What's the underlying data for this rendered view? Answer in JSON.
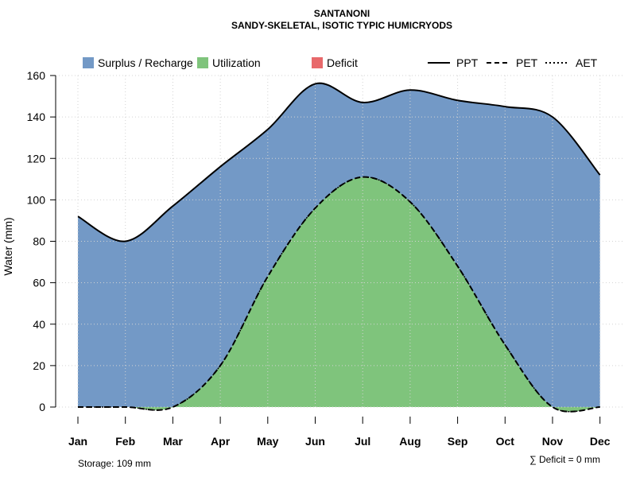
{
  "chart_data": {
    "type": "area",
    "title": "SANTANONI",
    "subtitle": "SANDY-SKELETAL, ISOTIC TYPIC HUMICRYODS",
    "xlabel": "",
    "ylabel": "Water (mm)",
    "ylim": [
      0,
      160
    ],
    "yticks": [
      0,
      20,
      40,
      60,
      80,
      100,
      120,
      140,
      160
    ],
    "categories": [
      "Jan",
      "Feb",
      "Mar",
      "Apr",
      "May",
      "Jun",
      "Jul",
      "Aug",
      "Sep",
      "Oct",
      "Nov",
      "Dec"
    ],
    "series": [
      {
        "name": "PPT",
        "style": "solid",
        "values": [
          92,
          80,
          97,
          116,
          134,
          156,
          147,
          153,
          148,
          145,
          140,
          112
        ]
      },
      {
        "name": "PET",
        "style": "dashed",
        "values": [
          0,
          0,
          0,
          20,
          63,
          96,
          111,
          99,
          68,
          30,
          0,
          0
        ]
      },
      {
        "name": "AET",
        "style": "dotted",
        "values": [
          0,
          0,
          0,
          20,
          63,
          96,
          111,
          99,
          68,
          30,
          0,
          0
        ]
      }
    ],
    "fills": [
      {
        "name": "Surplus / Recharge",
        "color": "#7399c6"
      },
      {
        "name": "Utilization",
        "color": "#7fc47c"
      },
      {
        "name": "Deficit",
        "color": "#e8696b"
      }
    ],
    "grid": true,
    "legend": "top",
    "storage_text": "Storage: 109 mm",
    "deficit_text": "∑ Deficit = 0 mm"
  }
}
